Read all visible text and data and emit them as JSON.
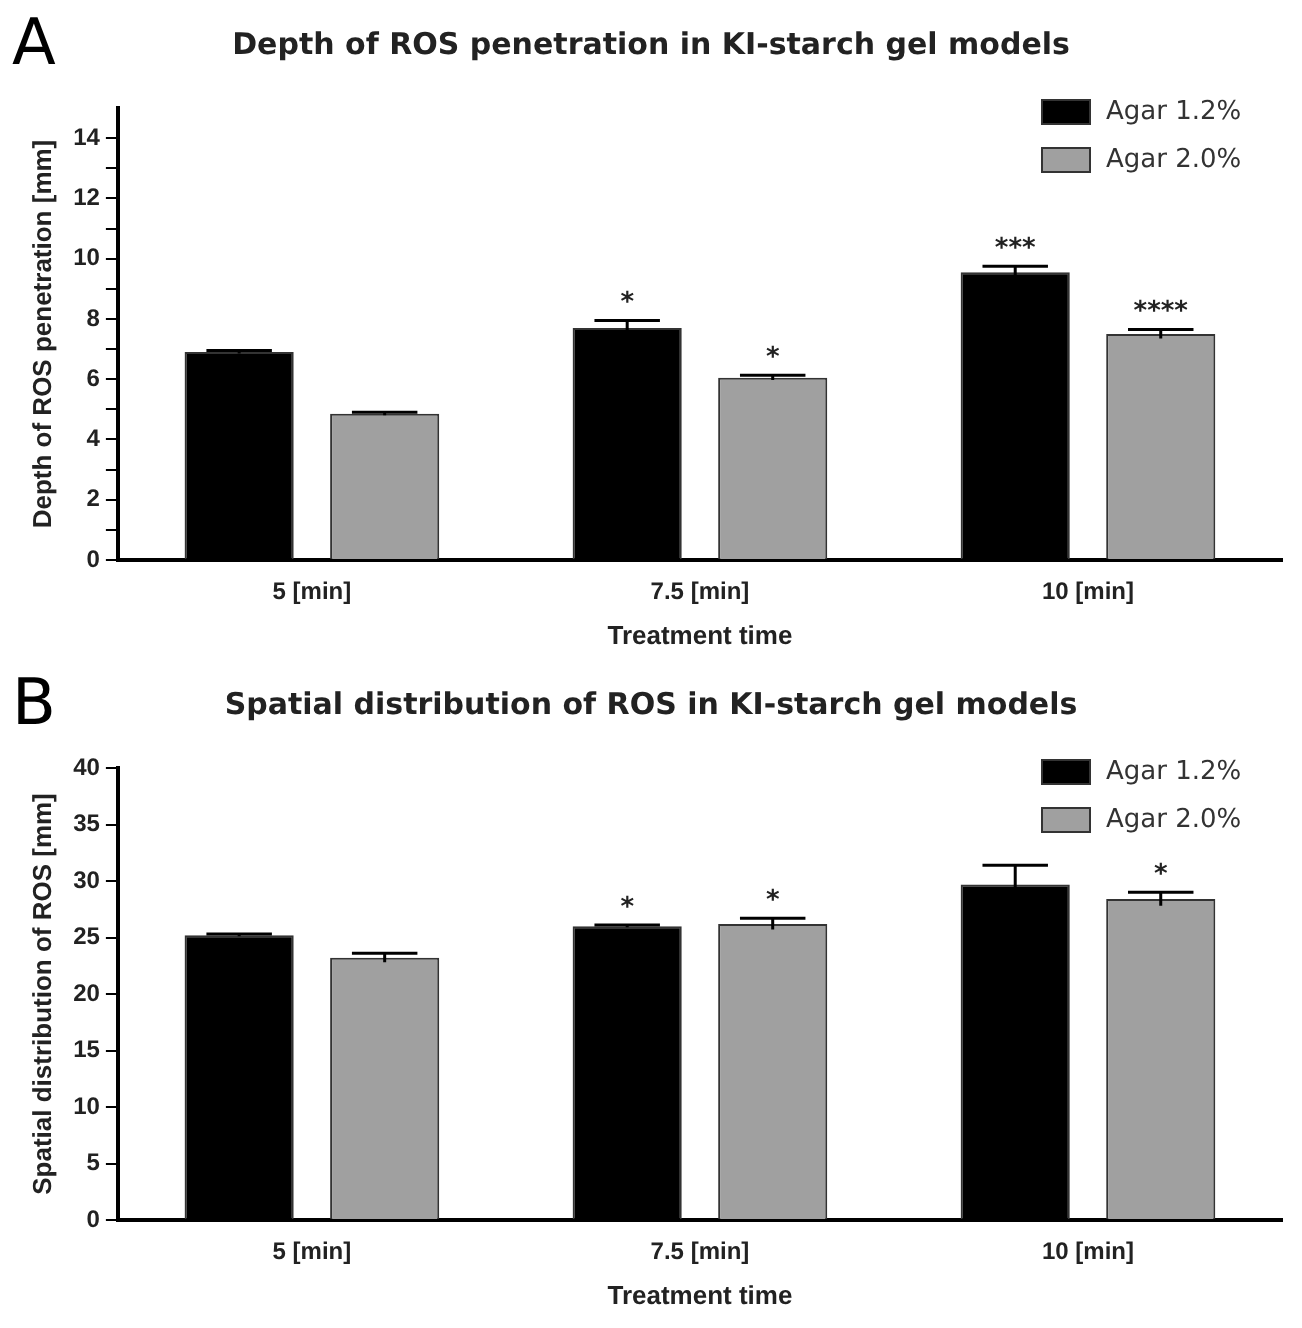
{
  "chart_data": [
    {
      "type": "bar",
      "title": "Depth of ROS penetration in KI-starch gel models",
      "xlabel": "Treatment time",
      "ylabel": "Depth of ROS penetration [mm]",
      "categories": [
        "5 [min]",
        "7.5 [min]",
        "10 [min]"
      ],
      "series": [
        {
          "name": "Agar 1.2%",
          "color": "#000000",
          "values": [
            6.9,
            7.7,
            9.55
          ],
          "errors": [
            0.05,
            0.25,
            0.2
          ],
          "value_labels": [
            null,
            "*",
            "***"
          ]
        },
        {
          "name": "Agar 2.0%",
          "color": "#a0a0a0",
          "values": [
            4.85,
            6.05,
            7.5
          ],
          "errors": [
            0.05,
            0.08,
            0.15
          ],
          "value_labels": [
            null,
            "*",
            "****"
          ]
        }
      ],
      "ylim": [
        0,
        15
      ],
      "yticks": [
        0,
        {
          "value": 1,
          "label": null
        },
        2,
        {
          "value": 3,
          "label": null
        },
        4,
        {
          "value": 5,
          "label": null
        },
        6,
        {
          "value": 7,
          "label": null
        },
        8,
        {
          "value": 9,
          "label": null
        },
        10,
        {
          "value": 11,
          "label": null
        },
        12,
        {
          "value": 13,
          "label": null
        },
        14
      ],
      "legend": "top right",
      "grid": false,
      "annotations": [
        "A"
      ]
    },
    {
      "type": "bar",
      "title": "Spatial distribution of ROS in KI-starch gel models",
      "xlabel": "Treatment time",
      "ylabel": "Spatial distribution of ROS [mm]",
      "categories": [
        "5 [min]",
        "7.5 [min]",
        "10 [min]"
      ],
      "series": [
        {
          "name": "Agar 1.2%",
          "color": "#000000",
          "values": [
            25.2,
            26.0,
            29.7
          ],
          "errors": [
            0.1,
            0.1,
            1.7
          ],
          "value_labels": [
            null,
            "*",
            null
          ]
        },
        {
          "name": "Agar 2.0%",
          "color": "#a0a0a0",
          "values": [
            23.2,
            26.2,
            28.4
          ],
          "errors": [
            0.4,
            0.5,
            0.6
          ],
          "value_labels": [
            null,
            "*",
            "*"
          ]
        }
      ],
      "ylim": [
        0,
        40
      ],
      "yticks": [
        0,
        5,
        10,
        15,
        20,
        25,
        30,
        35,
        40
      ],
      "legend": "top right",
      "grid": false,
      "annotations": [
        "B"
      ]
    }
  ]
}
